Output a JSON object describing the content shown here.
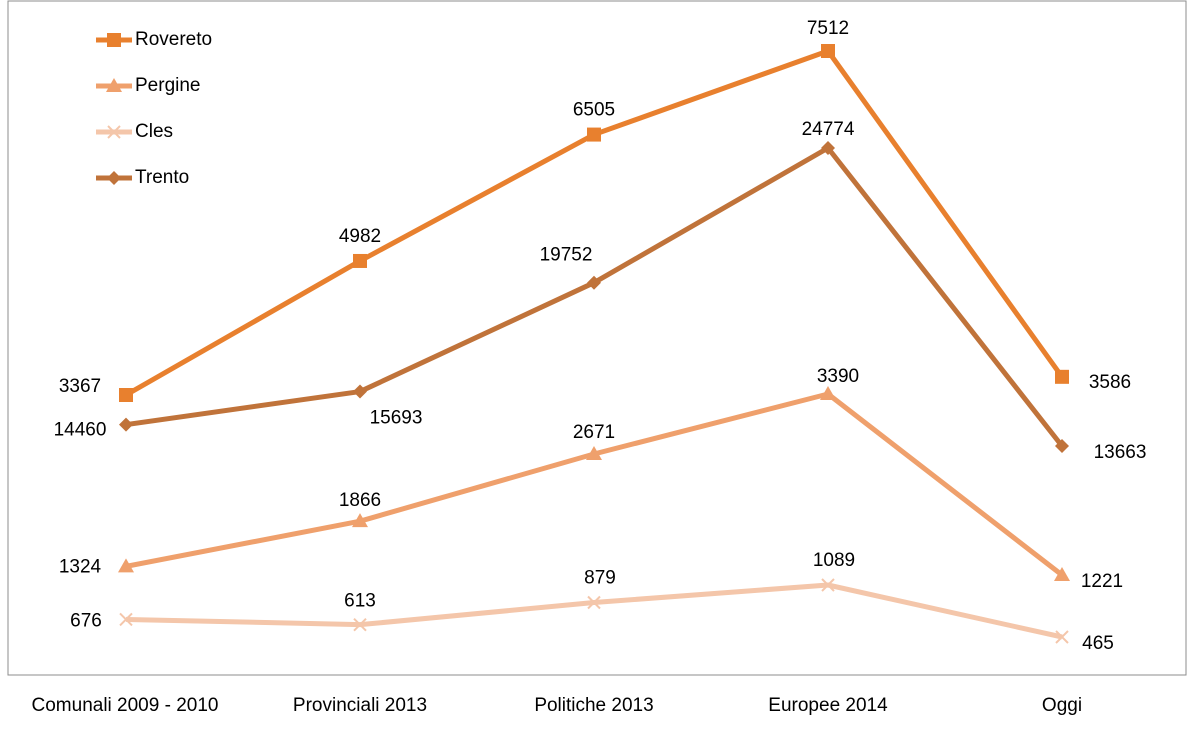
{
  "chart_data": {
    "type": "line",
    "title": "",
    "xlabel": "",
    "ylabel": "",
    "categories": [
      "Comunali 2009 - 2010",
      "Provinciali 2013",
      "Politiche 2013",
      "Europee 2014",
      "Oggi"
    ],
    "legend_position": "top-left",
    "grid": false,
    "series": [
      {
        "name": "Rovereto",
        "marker": "square",
        "color": "#e8802e",
        "values": [
          3367,
          4982,
          6505,
          7512,
          3586
        ]
      },
      {
        "name": "Pergine",
        "marker": "triangle",
        "color": "#efa06c",
        "values": [
          1324,
          1866,
          2671,
          3390,
          1221
        ]
      },
      {
        "name": "Cles",
        "marker": "x",
        "color": "#f4c6aa",
        "values": [
          676,
          613,
          879,
          1089,
          465
        ]
      },
      {
        "name": "Trento",
        "marker": "diamond",
        "color": "#c0733a",
        "values": [
          14460,
          15693,
          19752,
          24774,
          13663
        ]
      }
    ]
  }
}
